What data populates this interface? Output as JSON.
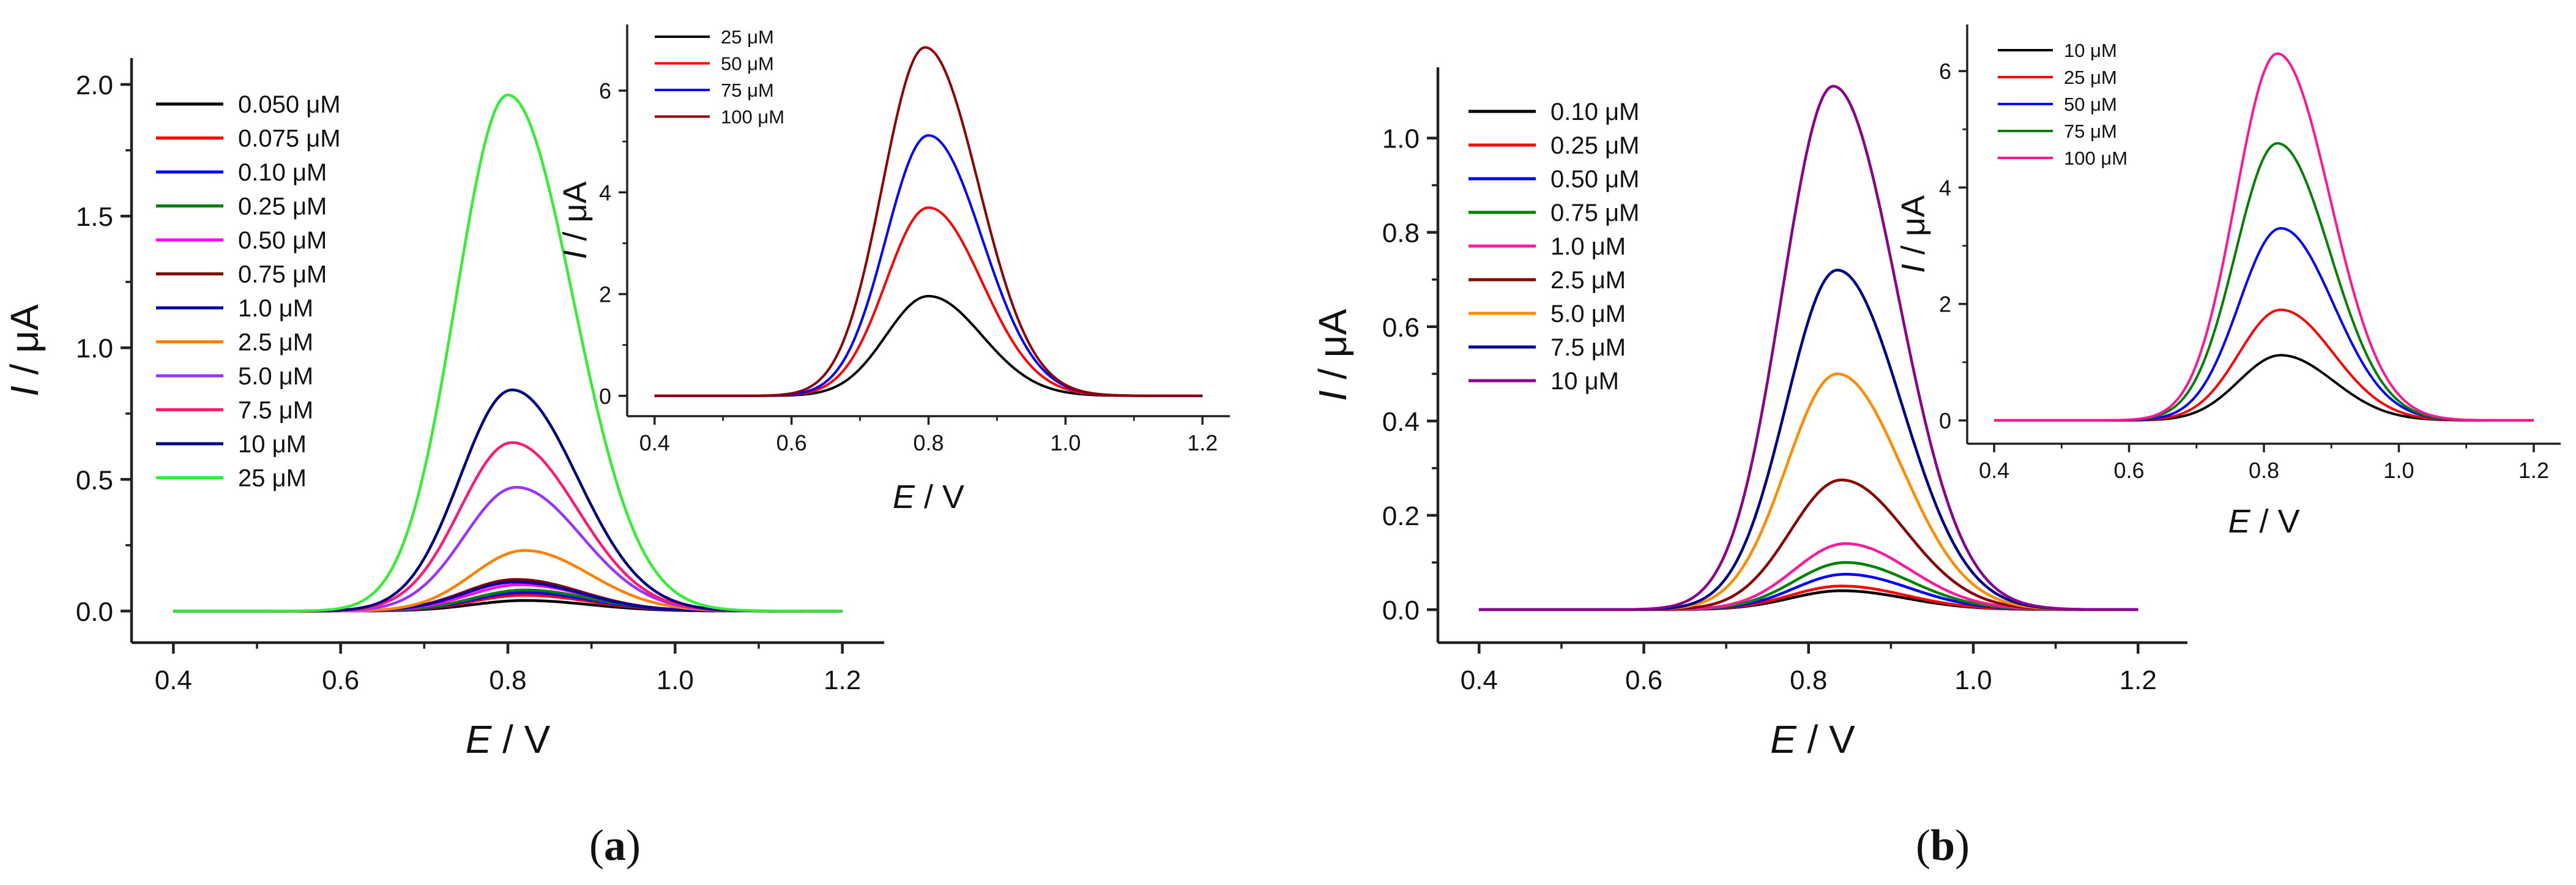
{
  "figure": {
    "labels": [
      "(a)",
      "(b)"
    ],
    "label_letters": [
      "a",
      "b"
    ]
  },
  "chart_data": [
    {
      "id": "a-main",
      "type": "line",
      "xlabel_var": "E",
      "xlabel_unit": "V",
      "ylabel_var": "I",
      "ylabel_unit": "μA",
      "xlim": [
        0.35,
        1.25
      ],
      "ylim": [
        -0.12,
        2.1
      ],
      "xticks": [
        "0.4",
        "0.6",
        "0.8",
        "1.0",
        "1.2"
      ],
      "yticks": [
        "0.0",
        "0.5",
        "1.0",
        "1.5",
        "2.0"
      ],
      "x_start": 0.4,
      "x_end": 1.2,
      "series": [
        {
          "name": "0.050 μM",
          "color": "#000000",
          "peak": 0.04,
          "center": 0.82
        },
        {
          "name": "0.075 μM",
          "color": "#ff0000",
          "peak": 0.06,
          "center": 0.82
        },
        {
          "name": "0.10 μM",
          "color": "#0000ff",
          "peak": 0.07,
          "center": 0.82
        },
        {
          "name": "0.25 μM",
          "color": "#008000",
          "peak": 0.08,
          "center": 0.82
        },
        {
          "name": "0.50 μM",
          "color": "#ff00ff",
          "peak": 0.1,
          "center": 0.815
        },
        {
          "name": "0.75 μM",
          "color": "#800000",
          "peak": 0.12,
          "center": 0.81
        },
        {
          "name": "1.0 μM",
          "color": "#0000a0",
          "peak": 0.11,
          "center": 0.81
        },
        {
          "name": "2.5 μM",
          "color": "#ff8000",
          "peak": 0.23,
          "center": 0.82
        },
        {
          "name": "5.0 μM",
          "color": "#9933ff",
          "peak": 0.47,
          "center": 0.81
        },
        {
          "name": "7.5 μM",
          "color": "#ff1a75",
          "peak": 0.64,
          "center": 0.805
        },
        {
          "name": "10 μM",
          "color": "#000080",
          "peak": 0.84,
          "center": 0.805
        },
        {
          "name": "25 μM",
          "color": "#33ee33",
          "peak": 1.96,
          "center": 0.8
        }
      ]
    },
    {
      "id": "a-inset",
      "type": "line",
      "xlabel_var": "E",
      "xlabel_unit": "V",
      "ylabel_var": "I",
      "ylabel_unit": "μA",
      "xlim": [
        0.36,
        1.24
      ],
      "ylim": [
        -0.4,
        7.3
      ],
      "xticks": [
        "0.4",
        "0.6",
        "0.8",
        "1.0",
        "1.2"
      ],
      "yticks": [
        "0",
        "2",
        "4",
        "6"
      ],
      "x_start": 0.4,
      "x_end": 1.2,
      "series": [
        {
          "name": "25 μM",
          "color": "#000000",
          "peak": 1.96,
          "center": 0.8
        },
        {
          "name": "50 μM",
          "color": "#ff0000",
          "peak": 3.7,
          "center": 0.8
        },
        {
          "name": "75 μM",
          "color": "#0000ff",
          "peak": 5.12,
          "center": 0.8
        },
        {
          "name": "100 μM",
          "color": "#8b0000",
          "peak": 6.85,
          "center": 0.795
        }
      ]
    },
    {
      "id": "b-main",
      "type": "line",
      "xlabel_var": "E",
      "xlabel_unit": "V",
      "ylabel_var": "I",
      "ylabel_unit": "μA",
      "xlim": [
        0.35,
        1.26
      ],
      "ylim": [
        -0.07,
        1.15
      ],
      "xticks": [
        "0.4",
        "0.6",
        "0.8",
        "1.0",
        "1.2"
      ],
      "yticks": [
        "0.0",
        "0.2",
        "0.4",
        "0.6",
        "0.8",
        "1.0"
      ],
      "x_start": 0.4,
      "x_end": 1.2,
      "series": [
        {
          "name": "0.10 μM",
          "color": "#000000",
          "peak": 0.04,
          "center": 0.84
        },
        {
          "name": "0.25 μM",
          "color": "#ff0000",
          "peak": 0.05,
          "center": 0.84
        },
        {
          "name": "0.50 μM",
          "color": "#0000ff",
          "peak": 0.075,
          "center": 0.845
        },
        {
          "name": "0.75 μM",
          "color": "#008000",
          "peak": 0.1,
          "center": 0.845
        },
        {
          "name": "1.0 μM",
          "color": "#ff1a9c",
          "peak": 0.14,
          "center": 0.845
        },
        {
          "name": "2.5 μM",
          "color": "#8b0000",
          "peak": 0.275,
          "center": 0.84
        },
        {
          "name": "5.0 μM",
          "color": "#ff8c00",
          "peak": 0.5,
          "center": 0.835
        },
        {
          "name": "7.5 μM",
          "color": "#00008b",
          "peak": 0.72,
          "center": 0.835
        },
        {
          "name": "10 μM",
          "color": "#8b008b",
          "peak": 1.11,
          "center": 0.83
        }
      ]
    },
    {
      "id": "b-inset",
      "type": "line",
      "xlabel_var": "E",
      "xlabel_unit": "V",
      "ylabel_var": "I",
      "ylabel_unit": "μA",
      "xlim": [
        0.36,
        1.24
      ],
      "ylim": [
        -0.4,
        6.8
      ],
      "xticks": [
        "0.4",
        "0.6",
        "0.8",
        "1.0",
        "1.2"
      ],
      "yticks": [
        "0",
        "2",
        "4",
        "6"
      ],
      "x_start": 0.4,
      "x_end": 1.2,
      "series": [
        {
          "name": "10 μM",
          "color": "#000000",
          "peak": 1.12,
          "center": 0.825
        },
        {
          "name": "25 μM",
          "color": "#ff0000",
          "peak": 1.9,
          "center": 0.825
        },
        {
          "name": "50 μM",
          "color": "#0000ff",
          "peak": 3.3,
          "center": 0.825
        },
        {
          "name": "75 μM",
          "color": "#008000",
          "peak": 4.76,
          "center": 0.82
        },
        {
          "name": "100 μM",
          "color": "#ff1493",
          "peak": 6.3,
          "center": 0.82
        }
      ]
    }
  ]
}
